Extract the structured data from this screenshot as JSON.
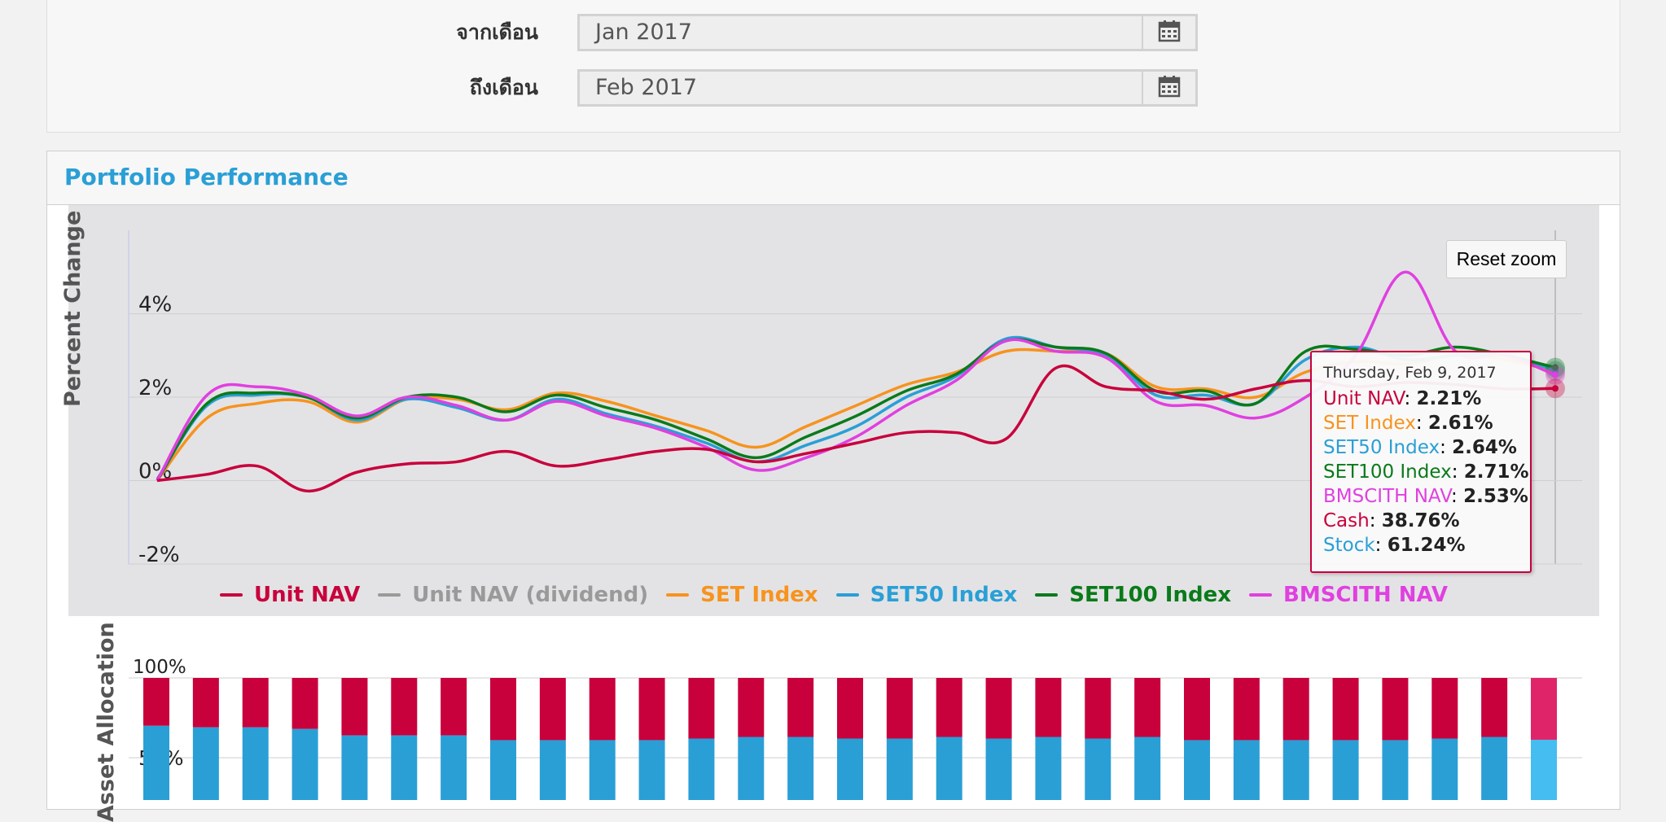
{
  "filters": {
    "from_label": "จากเดือน",
    "from_value": "Jan 2017",
    "to_label": "ถึงเดือน",
    "to_value": "Feb 2017",
    "calendar_icon": "calendar-icon"
  },
  "performance": {
    "title": "Portfolio Performance",
    "reset_zoom_label": "Reset zoom",
    "legend": [
      {
        "label": "Unit NAV",
        "color": "#c8003c"
      },
      {
        "label": "Unit NAV (dividend)",
        "color": "#9a9a9a"
      },
      {
        "label": "SET Index",
        "color": "#f7931e"
      },
      {
        "label": "SET50 Index",
        "color": "#2a9fd6"
      },
      {
        "label": "SET100 Index",
        "color": "#0a7a1a"
      },
      {
        "label": "BMSCITH NAV",
        "color": "#e040e0"
      }
    ],
    "tooltip": {
      "date": "Thursday, Feb 9, 2017",
      "rows": [
        {
          "label": "Unit NAV",
          "value": "2.21%",
          "color": "#c8003c"
        },
        {
          "label": "SET Index",
          "value": "2.61%",
          "color": "#f7931e"
        },
        {
          "label": "SET50 Index",
          "value": "2.64%",
          "color": "#2a9fd6"
        },
        {
          "label": "SET100 Index",
          "value": "2.71%",
          "color": "#0a7a1a"
        },
        {
          "label": "BMSCITH NAV",
          "value": "2.53%",
          "color": "#e040e0"
        },
        {
          "label": " Cash",
          "value": "38.76%",
          "color": "#c8003c"
        },
        {
          "label": " Stock",
          "value": "61.24%",
          "color": "#2a9fd6"
        }
      ]
    }
  },
  "chart_data": [
    {
      "type": "line",
      "ylabel": "Percent Change",
      "ylim": [
        -2,
        6
      ],
      "yticks": [
        "4%",
        "2%",
        "0%",
        "-2%"
      ],
      "x": [
        0,
        1,
        2,
        3,
        4,
        5,
        6,
        7,
        8,
        9,
        10,
        11,
        12,
        13,
        14,
        15,
        16,
        17,
        18,
        19,
        20,
        21,
        22,
        23,
        24,
        25,
        26,
        27,
        28
      ],
      "series": [
        {
          "name": "Unit NAV",
          "color": "#c8003c",
          "values": [
            0,
            0.15,
            0.35,
            -0.25,
            0.2,
            0.4,
            0.45,
            0.7,
            0.35,
            0.5,
            0.7,
            0.75,
            0.45,
            0.65,
            0.9,
            1.15,
            1.15,
            1.0,
            2.7,
            2.25,
            2.15,
            1.95,
            2.2,
            2.4,
            2.25,
            2.35,
            2.3,
            2.2,
            2.21
          ]
        },
        {
          "name": "SET Index",
          "color": "#f7931e",
          "values": [
            0,
            1.5,
            1.85,
            1.9,
            1.4,
            1.95,
            1.95,
            1.7,
            2.1,
            1.9,
            1.55,
            1.2,
            0.8,
            1.3,
            1.8,
            2.3,
            2.6,
            3.1,
            3.1,
            3.05,
            2.25,
            2.2,
            2.0,
            2.6,
            2.85,
            2.8,
            3.0,
            2.9,
            2.61
          ]
        },
        {
          "name": "SET50 Index",
          "color": "#2a9fd6",
          "values": [
            0,
            1.8,
            2.05,
            2.0,
            1.45,
            1.95,
            1.75,
            1.45,
            1.95,
            1.6,
            1.3,
            0.9,
            0.45,
            0.85,
            1.3,
            2.0,
            2.5,
            3.4,
            3.2,
            3.0,
            2.05,
            2.05,
            1.85,
            2.9,
            3.2,
            2.9,
            3.0,
            3.0,
            2.64
          ]
        },
        {
          "name": "SET100 Index",
          "color": "#0a7a1a",
          "values": [
            0,
            1.85,
            2.1,
            2.0,
            1.5,
            2.0,
            2.0,
            1.65,
            2.05,
            1.75,
            1.45,
            1.0,
            0.55,
            1.05,
            1.55,
            2.15,
            2.55,
            3.35,
            3.2,
            3.05,
            2.15,
            2.15,
            1.85,
            3.1,
            3.15,
            3.0,
            3.2,
            3.0,
            2.71
          ]
        },
        {
          "name": "BMSCITH NAV",
          "color": "#e040e0",
          "values": [
            0,
            2.05,
            2.25,
            2.05,
            1.55,
            2.0,
            1.8,
            1.45,
            1.9,
            1.55,
            1.25,
            0.8,
            0.25,
            0.55,
            1.05,
            1.8,
            2.4,
            3.35,
            3.1,
            2.95,
            1.9,
            1.8,
            1.5,
            2.0,
            3.0,
            5.0,
            3.1,
            3.0,
            2.53
          ]
        }
      ]
    },
    {
      "type": "bar",
      "ylabel": "Asset Allocation",
      "yticks": [
        "100%",
        "50%"
      ],
      "stacked": true,
      "series": [
        {
          "name": "Cash",
          "color": "#c8003c",
          "values": [
            30,
            31,
            31,
            32,
            36,
            36,
            36,
            39,
            39,
            39,
            39,
            38,
            37,
            37,
            38,
            38,
            37,
            38,
            37,
            38,
            37,
            39,
            39,
            39,
            39,
            39,
            38,
            37,
            38.76
          ]
        },
        {
          "name": "Stock",
          "color": "#2a9fd6",
          "values": [
            70,
            69,
            69,
            68,
            64,
            64,
            64,
            61,
            61,
            61,
            61,
            62,
            63,
            63,
            62,
            62,
            63,
            62,
            63,
            62,
            63,
            61,
            61,
            61,
            61,
            61,
            62,
            63,
            61.24
          ]
        }
      ]
    }
  ]
}
